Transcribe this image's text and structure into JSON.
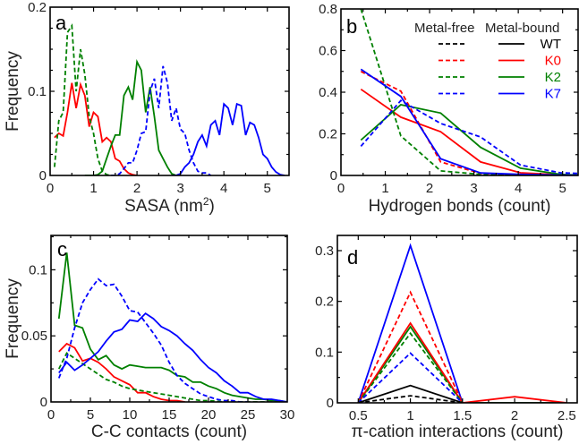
{
  "figure": {
    "legend": {
      "header_free": "Metal-free",
      "header_bound": "Metal-bound",
      "entries": [
        {
          "label": "WT",
          "color": "#000000"
        },
        {
          "label": "K0",
          "color": "#ff0000"
        },
        {
          "label": "K2",
          "color": "#008000"
        },
        {
          "label": "K7",
          "color": "#0000ff"
        }
      ]
    }
  },
  "chart_data": [
    {
      "panel": "a",
      "type": "line",
      "title": "",
      "xlabel": "SASA (nm",
      "xlabel_sup": "2",
      "xlabel_close": ")",
      "ylabel": "Frequency",
      "xlim": [
        0,
        5.5
      ],
      "ylim": [
        0,
        0.2
      ],
      "xticks": [
        0,
        1,
        2,
        3,
        4,
        5
      ],
      "xtick_labels": [
        "0",
        "1",
        "2",
        "3",
        "4",
        "5"
      ],
      "yticks": [
        0,
        0.1,
        0.2
      ],
      "ytick_labels": [
        "0",
        "0.1",
        "0.2"
      ],
      "yminor": 0.025,
      "xminor": 0.5,
      "grid": false,
      "series": [
        {
          "name": "K0 metal-bound",
          "color": "#ff0000",
          "dash": false,
          "x": [
            0.1,
            0.2,
            0.3,
            0.4,
            0.5,
            0.6,
            0.7,
            0.8,
            0.9,
            1.0,
            1.1,
            1.2,
            1.3,
            1.4,
            1.5,
            1.6,
            1.7,
            1.8,
            1.9,
            2.0
          ],
          "y": [
            0.045,
            0.05,
            0.047,
            0.075,
            0.11,
            0.08,
            0.108,
            0.095,
            0.058,
            0.075,
            0.07,
            0.04,
            0.045,
            0.04,
            0.02,
            0.017,
            0.008,
            0.003,
            0.001,
            0
          ]
        },
        {
          "name": "K2 metal-free",
          "color": "#008000",
          "dash": true,
          "x": [
            0.1,
            0.2,
            0.3,
            0.4,
            0.5,
            0.6,
            0.7,
            0.8,
            0.9,
            1.0,
            1.1,
            1.2,
            1.3,
            1.4,
            1.5
          ],
          "y": [
            0.01,
            0.065,
            0.075,
            0.17,
            0.178,
            0.1,
            0.15,
            0.12,
            0.07,
            0.05,
            0.02,
            0.005,
            0.001,
            0,
            0
          ]
        },
        {
          "name": "K2 metal-bound",
          "color": "#008000",
          "dash": false,
          "x": [
            0.8,
            0.9,
            1.0,
            1.1,
            1.2,
            1.3,
            1.4,
            1.5,
            1.6,
            1.7,
            1.8,
            1.9,
            2.0,
            2.1,
            2.2,
            2.3,
            2.4,
            2.5,
            2.6,
            2.7,
            2.8,
            2.9
          ],
          "y": [
            0,
            0,
            0,
            0.001,
            0.005,
            0.02,
            0.035,
            0.048,
            0.048,
            0.095,
            0.105,
            0.09,
            0.135,
            0.125,
            0.075,
            0.105,
            0.07,
            0.03,
            0.02,
            0.01,
            0.002,
            0
          ]
        },
        {
          "name": "K7 metal-free",
          "color": "#0000ff",
          "dash": true,
          "x": [
            1.4,
            1.5,
            1.6,
            1.7,
            1.8,
            1.9,
            2.0,
            2.1,
            2.2,
            2.3,
            2.4,
            2.5,
            2.6,
            2.7,
            2.8,
            2.9,
            3.0,
            3.1,
            3.2,
            3.3,
            3.4,
            3.5,
            3.6,
            3.7
          ],
          "y": [
            0,
            0,
            0.002,
            0.008,
            0.015,
            0.015,
            0.03,
            0.05,
            0.052,
            0.1,
            0.115,
            0.08,
            0.13,
            0.11,
            0.065,
            0.08,
            0.055,
            0.05,
            0.03,
            0.015,
            0.005,
            0.003,
            0.003,
            0
          ]
        },
        {
          "name": "K7 metal-bound",
          "color": "#0000ff",
          "dash": false,
          "x": [
            2.8,
            2.9,
            3.0,
            3.1,
            3.2,
            3.3,
            3.4,
            3.5,
            3.6,
            3.7,
            3.8,
            3.9,
            4.0,
            4.1,
            4.2,
            4.3,
            4.4,
            4.5,
            4.6,
            4.7,
            4.8,
            4.9,
            5.0,
            5.1,
            5.2,
            5.3,
            5.4
          ],
          "y": [
            0,
            0,
            0.002,
            0.01,
            0.015,
            0.025,
            0.04,
            0.048,
            0.035,
            0.06,
            0.065,
            0.048,
            0.085,
            0.08,
            0.06,
            0.085,
            0.083,
            0.048,
            0.063,
            0.06,
            0.045,
            0.025,
            0.02,
            0.01,
            0.004,
            0.001,
            0
          ]
        }
      ]
    },
    {
      "panel": "b",
      "type": "line",
      "title": "",
      "xlabel": "Hydrogen bonds (count)",
      "ylabel": "",
      "xlim": [
        0,
        5.35
      ],
      "ylim": [
        0,
        0.8
      ],
      "xticks": [
        0,
        1,
        2,
        3,
        4,
        5
      ],
      "xtick_labels": [
        "0",
        "1",
        "2",
        "3",
        "4",
        "5"
      ],
      "yticks": [
        0,
        0.2,
        0.4,
        0.6,
        0.8
      ],
      "ytick_labels": [
        "0",
        "0.2",
        "0.4",
        "0.6",
        "0.8"
      ],
      "yminor": 0.1,
      "xminor": 0.5,
      "grid": false,
      "legend_position": "top-right",
      "series": [
        {
          "name": "K0 metal-bound",
          "color": "#ff0000",
          "dash": false,
          "x": [
            0.45,
            1.35,
            2.25,
            3.15,
            4.05,
            4.95,
            5.35
          ],
          "y": [
            0.414,
            0.28,
            0.21,
            0.065,
            0.013,
            0.003,
            0.001
          ]
        },
        {
          "name": "K0 metal-free",
          "color": "#ff0000",
          "dash": true,
          "x": [
            0.45,
            1.35,
            2.25,
            3.15,
            4.05,
            4.95,
            5.35
          ],
          "y": [
            0.5,
            0.405,
            0.065,
            0.01,
            0.003,
            0.001,
            0
          ]
        },
        {
          "name": "K2 metal-bound",
          "color": "#008000",
          "dash": false,
          "x": [
            0.45,
            1.35,
            2.25,
            3.15,
            4.05,
            4.95,
            5.35
          ],
          "y": [
            0.17,
            0.34,
            0.3,
            0.135,
            0.035,
            0.005,
            0.002
          ]
        },
        {
          "name": "K2 metal-free",
          "color": "#008000",
          "dash": true,
          "x": [
            0.45,
            1.35,
            2.25,
            3.15,
            4.05,
            4.95,
            5.35
          ],
          "y": [
            0.8,
            0.19,
            0.022,
            0.005,
            0,
            0,
            0
          ]
        },
        {
          "name": "K7 metal-bound",
          "color": "#0000ff",
          "dash": false,
          "x": [
            0.45,
            1.35,
            2.25,
            3.15,
            4.05,
            4.95,
            5.35
          ],
          "y": [
            0.51,
            0.38,
            0.08,
            0.012,
            0.005,
            0.002,
            0.001
          ]
        },
        {
          "name": "K7 metal-free",
          "color": "#0000ff",
          "dash": true,
          "x": [
            0.45,
            1.35,
            2.25,
            3.15,
            4.05,
            4.95,
            5.35
          ],
          "y": [
            0.14,
            0.36,
            0.25,
            0.185,
            0.05,
            0.013,
            0.01
          ]
        }
      ]
    },
    {
      "panel": "c",
      "type": "line",
      "title": "",
      "xlabel": "C-C contacts (count)",
      "ylabel": "Frequency",
      "xlim": [
        0,
        30
      ],
      "ylim": [
        0,
        0.126
      ],
      "xticks": [
        0,
        5,
        10,
        15,
        20,
        25,
        30
      ],
      "xtick_labels": [
        "0",
        "5",
        "10",
        "15",
        "20",
        "25",
        "30"
      ],
      "yticks": [
        0,
        0.05,
        0.1
      ],
      "ytick_labels": [
        "0",
        "0.05",
        "0.1"
      ],
      "yminor": 0.025,
      "xminor": 2.5,
      "grid": false,
      "series": [
        {
          "name": "K2 metal-bound",
          "color": "#008000",
          "dash": false,
          "x": [
            1,
            2,
            3,
            4,
            5,
            6,
            7,
            8,
            9,
            10,
            11,
            12,
            13,
            14,
            15,
            16,
            17,
            18,
            19,
            20,
            21,
            22,
            23,
            24,
            25,
            26,
            27,
            28,
            29,
            30
          ],
          "y": [
            0.063,
            0.113,
            0.058,
            0.056,
            0.04,
            0.032,
            0.035,
            0.028,
            0.025,
            0.028,
            0.027,
            0.026,
            0.026,
            0.026,
            0.024,
            0.02,
            0.019,
            0.015,
            0.015,
            0.012,
            0.01,
            0.007,
            0.005,
            0.004,
            0.003,
            0.002,
            0.002,
            0.001,
            0.001,
            0
          ]
        },
        {
          "name": "K0 metal-bound",
          "color": "#ff0000",
          "dash": false,
          "x": [
            1,
            2,
            3,
            4,
            5,
            6,
            7,
            8,
            9,
            10,
            11,
            12,
            13,
            14,
            15,
            16,
            17
          ],
          "y": [
            0.038,
            0.044,
            0.041,
            0.031,
            0.033,
            0.03,
            0.025,
            0.019,
            0.016,
            0.013,
            0.007,
            0.007,
            0.004,
            0.002,
            0.001,
            0.001,
            0
          ]
        },
        {
          "name": "K2 metal-free",
          "color": "#008000",
          "dash": true,
          "x": [
            1,
            2,
            3,
            4,
            5,
            6,
            7,
            8,
            9,
            10,
            11,
            12,
            13,
            14,
            15,
            16,
            17,
            18,
            19,
            20,
            22,
            25,
            30
          ],
          "y": [
            0.025,
            0.037,
            0.033,
            0.029,
            0.025,
            0.021,
            0.017,
            0.015,
            0.012,
            0.01,
            0.009,
            0.008,
            0.007,
            0.006,
            0.005,
            0.004,
            0.003,
            0.002,
            0.001,
            0.001,
            0,
            0,
            0
          ]
        },
        {
          "name": "K7 metal-bound",
          "color": "#0000ff",
          "dash": false,
          "x": [
            1,
            2,
            3,
            4,
            5,
            6,
            7,
            8,
            9,
            10,
            11,
            12,
            13,
            14,
            15,
            16,
            17,
            18,
            19,
            20,
            21,
            22,
            23,
            24,
            25,
            26,
            27,
            28,
            29,
            30
          ],
          "y": [
            0.022,
            0.03,
            0.024,
            0.028,
            0.033,
            0.038,
            0.046,
            0.053,
            0.055,
            0.062,
            0.061,
            0.067,
            0.063,
            0.057,
            0.054,
            0.05,
            0.044,
            0.039,
            0.032,
            0.026,
            0.022,
            0.016,
            0.012,
            0.007,
            0.007,
            0.004,
            0.002,
            0.002,
            0.001,
            0
          ]
        },
        {
          "name": "K7 metal-free",
          "color": "#0000ff",
          "dash": true,
          "x": [
            1,
            2,
            3,
            4,
            5,
            6,
            7,
            8,
            9,
            10,
            11,
            12,
            13,
            14,
            15,
            16,
            17,
            18,
            19,
            20,
            21,
            22,
            23,
            24,
            25
          ],
          "y": [
            0.018,
            0.033,
            0.056,
            0.075,
            0.085,
            0.093,
            0.088,
            0.089,
            0.08,
            0.069,
            0.068,
            0.06,
            0.052,
            0.043,
            0.03,
            0.02,
            0.014,
            0.01,
            0.006,
            0.004,
            0.002,
            0.001,
            0.001,
            0,
            0
          ]
        }
      ]
    },
    {
      "panel": "d",
      "type": "line",
      "title": "",
      "xlabel": "π-cation interactions (count)",
      "ylabel": "",
      "xlim": [
        0.3,
        2.6
      ],
      "ylim": [
        0,
        0.33
      ],
      "xticks": [
        0.5,
        1,
        1.5,
        2,
        2.5
      ],
      "xtick_labels": [
        "0.5",
        "1",
        "1.5",
        "2",
        "2.5"
      ],
      "yticks": [
        0,
        0.1,
        0.2,
        0.3
      ],
      "ytick_labels": [
        "0",
        "0.1",
        "0.2",
        "0.3"
      ],
      "yminor": 0.05,
      "xminor": 0.25,
      "grid": false,
      "series": [
        {
          "name": "K7 metal-bound",
          "color": "#0000ff",
          "dash": false,
          "x": [
            0.5,
            1,
            1.5,
            2,
            2.5
          ],
          "y": [
            0,
            0.31,
            0,
            0,
            0
          ]
        },
        {
          "name": "K0 metal-free",
          "color": "#ff0000",
          "dash": true,
          "x": [
            0.5,
            1,
            1.5
          ],
          "y": [
            0,
            0.218,
            0
          ]
        },
        {
          "name": "K2 metal-bound",
          "color": "#008000",
          "dash": false,
          "x": [
            0.5,
            1,
            1.5,
            2,
            2.5
          ],
          "y": [
            0,
            0.15,
            0,
            0,
            0
          ]
        },
        {
          "name": "K0 metal-bound",
          "color": "#ff0000",
          "dash": false,
          "x": [
            0.5,
            1,
            1.5,
            2,
            2.5
          ],
          "y": [
            0,
            0.157,
            0,
            0.012,
            0
          ]
        },
        {
          "name": "K2 metal-free",
          "color": "#008000",
          "dash": true,
          "x": [
            0.5,
            1,
            1.5
          ],
          "y": [
            0,
            0.137,
            0
          ]
        },
        {
          "name": "K7 metal-free",
          "color": "#0000ff",
          "dash": true,
          "x": [
            0.5,
            1,
            1.5
          ],
          "y": [
            0,
            0.098,
            0
          ]
        },
        {
          "name": "WT metal-bound",
          "color": "#000000",
          "dash": false,
          "x": [
            0.5,
            1,
            1.5
          ],
          "y": [
            0,
            0.034,
            0
          ]
        },
        {
          "name": "WT metal-free",
          "color": "#000000",
          "dash": true,
          "x": [
            0.5,
            1,
            1.5
          ],
          "y": [
            0,
            0.014,
            0
          ]
        }
      ]
    }
  ]
}
